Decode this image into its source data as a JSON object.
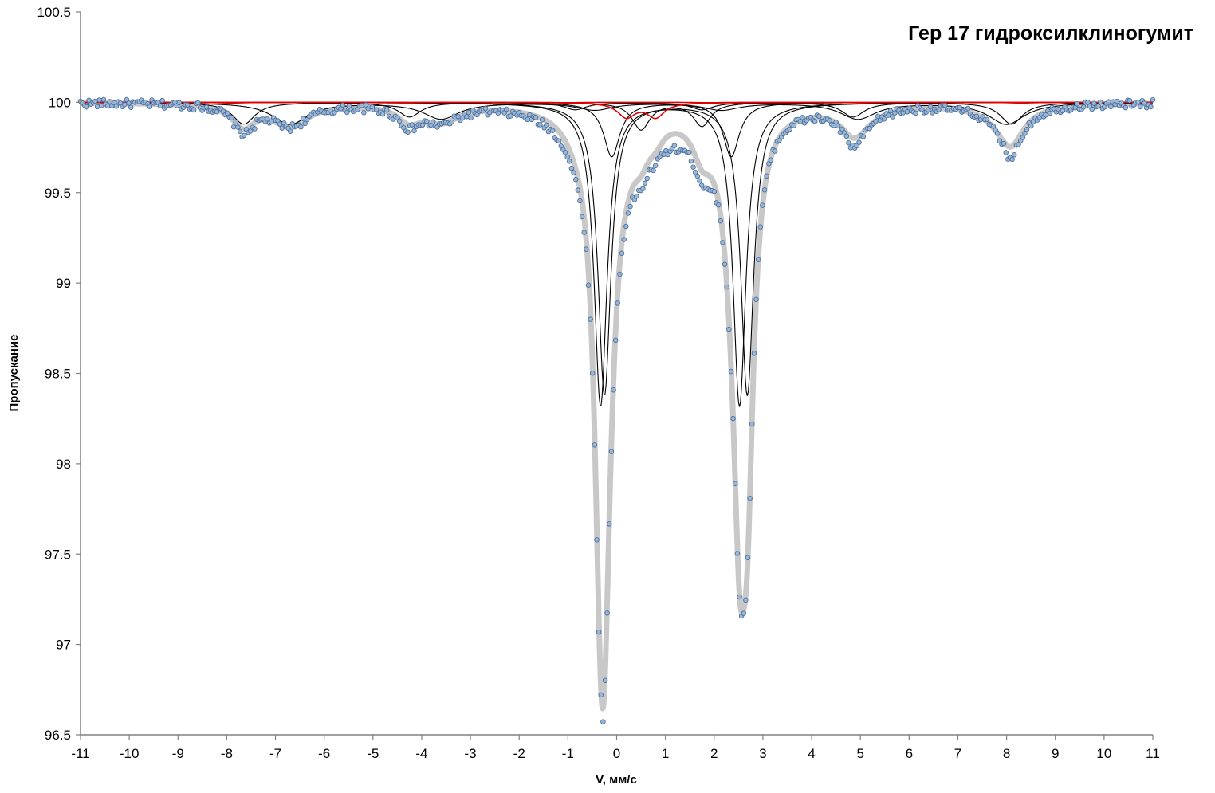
{
  "chart_data": {
    "type": "scatter",
    "title": "Гер 17 гидроксилклиногумит",
    "xlabel": "V, мм/с",
    "ylabel": "Пропускание",
    "xlim": [
      -11,
      11
    ],
    "ylim": [
      96.5,
      100.5
    ],
    "xticks": [
      "-11",
      "-10",
      "-9",
      "-8",
      "-7",
      "-6",
      "-5",
      "-4",
      "-3",
      "-2",
      "-1",
      "0",
      "1",
      "2",
      "3",
      "4",
      "5",
      "6",
      "7",
      "8",
      "9",
      "10",
      "11"
    ],
    "yticks": [
      "96.5",
      "97",
      "97.5",
      "98",
      "98.5",
      "99",
      "99.5",
      "100",
      "100.5"
    ],
    "baseline": 100,
    "grid": false,
    "legend": "none",
    "colors": {
      "points_fill": "#9bb7d4",
      "points_stroke": "#4a6fa0",
      "envelope": "#c8c8c8",
      "components": "#000000",
      "red_component": "#e00000"
    },
    "series": [
      {
        "kind": "doublet",
        "color": "black",
        "peaks": [
          [
            -0.33,
            1.68,
            0.16
          ],
          [
            2.52,
            1.68,
            0.16
          ]
        ]
      },
      {
        "kind": "doublet",
        "color": "black",
        "peaks": [
          [
            -0.25,
            1.62,
            0.16
          ],
          [
            2.68,
            1.62,
            0.16
          ]
        ]
      },
      {
        "kind": "doublet",
        "color": "black",
        "peaks": [
          [
            -0.1,
            0.3,
            0.2
          ],
          [
            2.35,
            0.3,
            0.2
          ]
        ]
      },
      {
        "kind": "doublet",
        "color": "black",
        "peaks": [
          [
            0.5,
            0.15,
            0.22
          ],
          [
            1.75,
            0.13,
            0.22
          ]
        ]
      },
      {
        "kind": "sextet",
        "color": "black",
        "peaks": [
          [
            -7.65,
            0.12,
            0.28
          ],
          [
            -4.25,
            0.08,
            0.28
          ],
          [
            -0.85,
            0.04,
            0.28
          ],
          [
            1.75,
            0.04,
            0.28
          ],
          [
            4.85,
            0.08,
            0.28
          ],
          [
            8.1,
            0.12,
            0.28
          ]
        ]
      },
      {
        "kind": "sextet",
        "color": "black",
        "peaks": [
          [
            -6.7,
            0.12,
            0.45
          ],
          [
            -3.6,
            0.09,
            0.45
          ],
          [
            -0.45,
            0.04,
            0.45
          ],
          [
            2.15,
            0.04,
            0.45
          ],
          [
            4.95,
            0.09,
            0.45
          ],
          [
            8.0,
            0.12,
            0.45
          ]
        ]
      },
      {
        "kind": "doublet",
        "color": "red",
        "peaks": [
          [
            0.2,
            0.08,
            0.22
          ],
          [
            0.8,
            0.08,
            0.22
          ]
        ]
      },
      {
        "kind": "sextet",
        "color": "red",
        "peaks": [
          [
            -7.9,
            0.004,
            0.3
          ],
          [
            -4.4,
            0.003,
            0.3
          ],
          [
            -1.0,
            0.002,
            0.3
          ],
          [
            1.9,
            0.002,
            0.3
          ],
          [
            5.0,
            0.003,
            0.3
          ],
          [
            8.3,
            0.004,
            0.3
          ]
        ]
      }
    ],
    "points": {
      "x_min": -11,
      "x_max": 11,
      "count": 512,
      "extra_dips": [
        [
          4.85,
          0.1,
          0.18
        ],
        [
          8.1,
          0.12,
          0.15
        ],
        [
          -7.65,
          0.05,
          0.2
        ],
        [
          -4.3,
          0.04,
          0.2
        ],
        [
          1.8,
          0.1,
          0.3
        ],
        [
          1.2,
          0.12,
          0.35
        ],
        [
          0.4,
          0.1,
          0.45
        ],
        [
          -0.8,
          0.12,
          0.6
        ]
      ]
    }
  }
}
